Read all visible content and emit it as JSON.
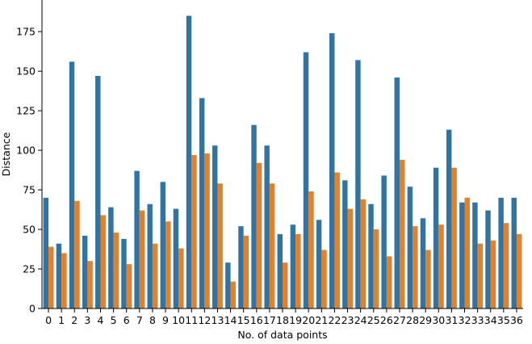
{
  "chart_data": {
    "type": "bar",
    "title": "",
    "xlabel": "No. of data points",
    "ylabel": "Distance",
    "ylim": [
      0,
      195
    ],
    "yticks": [
      0,
      25,
      50,
      75,
      100,
      125,
      150,
      175
    ],
    "grid": false,
    "legend": "none",
    "categories": [
      "0",
      "1",
      "2",
      "3",
      "4",
      "5",
      "6",
      "7",
      "8",
      "9",
      "10",
      "11",
      "12",
      "13",
      "14",
      "15",
      "16",
      "17",
      "18",
      "19",
      "20",
      "21",
      "22",
      "23",
      "24",
      "25",
      "26",
      "27",
      "28",
      "29",
      "30",
      "31",
      "32",
      "33",
      "34",
      "35",
      "36"
    ],
    "series": [
      {
        "color": "#3274a1",
        "values": [
          70,
          41,
          156,
          46,
          147,
          64,
          44,
          87,
          66,
          80,
          63,
          185,
          133,
          103,
          29,
          52,
          116,
          103,
          47,
          53,
          162,
          56,
          174,
          81,
          157,
          66,
          84,
          146,
          77,
          57,
          89,
          113,
          67,
          67,
          62,
          70,
          70
        ]
      },
      {
        "color": "#e1812c",
        "values": [
          39,
          35,
          68,
          30,
          59,
          48,
          28,
          62,
          41,
          55,
          38,
          97,
          98,
          79,
          17,
          46,
          92,
          79,
          29,
          47,
          74,
          37,
          86,
          63,
          69,
          50,
          33,
          94,
          52,
          37,
          53,
          89,
          70,
          41,
          43,
          54,
          47
        ]
      }
    ]
  }
}
